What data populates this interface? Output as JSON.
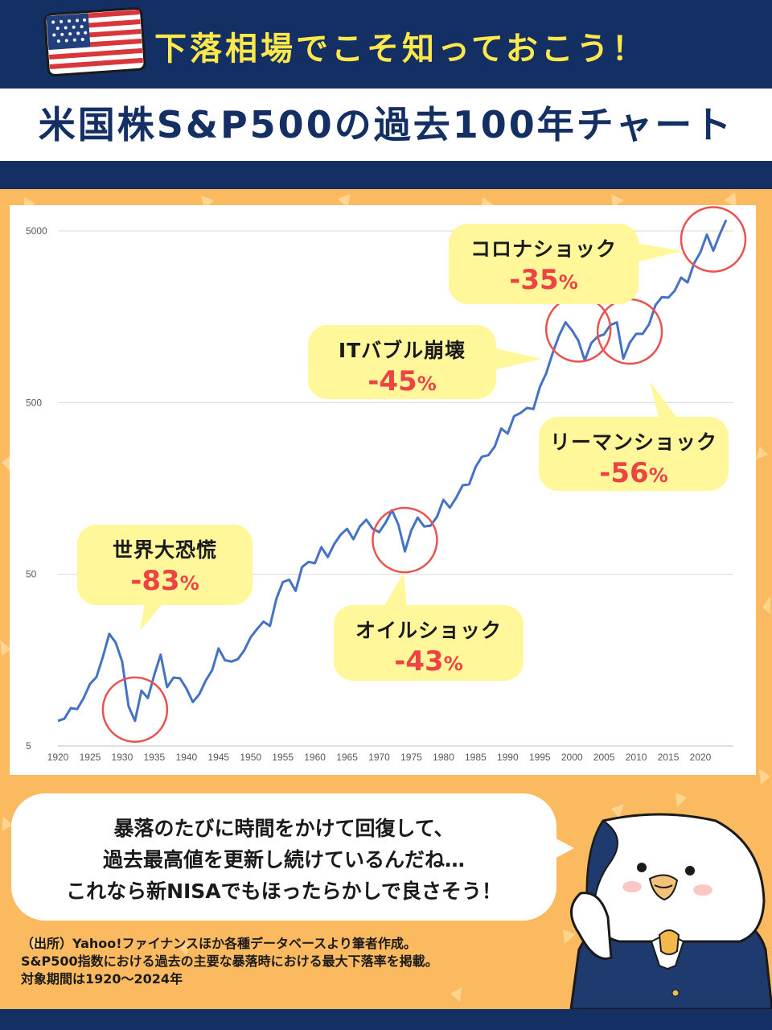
{
  "header": {
    "subtitle": "下落相場でこそ知っておこう！",
    "title": "米国株S&P500の過去100年チャート"
  },
  "colors": {
    "navy": "#132f63",
    "yellow_text": "#ffe94a",
    "orange_bg": "#fbb960",
    "line": "#4472c4",
    "circle": "#e8524f",
    "callout_bg": "#fff79a",
    "percent_red": "#ef4245"
  },
  "chart_data": {
    "type": "line",
    "y_scale": "log",
    "ylim": [
      5,
      6500
    ],
    "y_ticks": [
      "5",
      "50",
      "500",
      "5000"
    ],
    "y_tick_values": [
      5,
      50,
      500,
      5000
    ],
    "xlim": [
      1920,
      2024
    ],
    "x_ticks": [
      "1920",
      "1925",
      "1930",
      "1935",
      "1940",
      "1945",
      "1950",
      "1955",
      "1960",
      "1965",
      "1970",
      "1975",
      "1980",
      "1985",
      "1990",
      "1995",
      "2000",
      "2005",
      "2010",
      "2015",
      "2020"
    ],
    "grid": true,
    "series": [
      {
        "x": [
          1920,
          1921,
          1922,
          1923,
          1924,
          1925,
          1926,
          1927,
          1928,
          1929,
          1930,
          1931,
          1932,
          1933,
          1934,
          1935,
          1936,
          1937,
          1938,
          1939,
          1940,
          1941,
          1942,
          1943,
          1944,
          1945,
          1946,
          1947,
          1948,
          1949,
          1950,
          1951,
          1952,
          1953,
          1954,
          1955,
          1956,
          1957,
          1958,
          1959,
          1960,
          1961,
          1962,
          1963,
          1964,
          1965,
          1966,
          1967,
          1968,
          1969,
          1970,
          1971,
          1972,
          1973,
          1974,
          1975,
          1976,
          1977,
          1978,
          1979,
          1980,
          1981,
          1982,
          1983,
          1984,
          1985,
          1986,
          1987,
          1988,
          1989,
          1990,
          1991,
          1992,
          1993,
          1994,
          1995,
          1996,
          1997,
          1998,
          1999,
          2000,
          2001,
          2002,
          2003,
          2004,
          2005,
          2006,
          2007,
          2008,
          2009,
          2010,
          2011,
          2012,
          2013,
          2014,
          2015,
          2016,
          2017,
          2018,
          2019,
          2020,
          2021,
          2022,
          2023,
          2024
        ],
        "values": [
          7.0,
          7.2,
          8.3,
          8.2,
          9.5,
          11.5,
          12.6,
          16.5,
          22.5,
          20.0,
          15.5,
          8.5,
          7.0,
          10.5,
          9.5,
          13.0,
          17.0,
          11.0,
          12.5,
          12.4,
          10.8,
          9.0,
          10.0,
          12.0,
          13.8,
          18.5,
          15.8,
          15.5,
          16.0,
          18.0,
          21.5,
          24.0,
          26.5,
          25.0,
          36.0,
          45.0,
          46.5,
          40.0,
          55.0,
          59.0,
          58.0,
          72.0,
          63.0,
          75.0,
          85.0,
          92.0,
          80.0,
          95.0,
          104.0,
          92.0,
          88.0,
          100.0,
          118.0,
          97.0,
          68.0,
          90.0,
          107.0,
          95.0,
          96.0,
          108.0,
          136.0,
          122.0,
          140.0,
          165.0,
          167.0,
          211.0,
          242.0,
          247.0,
          278.0,
          353.0,
          330.0,
          417.0,
          435.0,
          466.0,
          459.0,
          616.0,
          740.0,
          970.0,
          1229.0,
          1469.0,
          1320.0,
          1148.0,
          880.0,
          1111.0,
          1212.0,
          1248.0,
          1418.0,
          1468.0,
          903.0,
          1115.0,
          1258.0,
          1258.0,
          1426.0,
          1848.0,
          2059.0,
          2044.0,
          2239.0,
          2674.0,
          2507.0,
          3231.0,
          3756.0,
          4766.0,
          3839.0,
          4770.0,
          5800.0
        ]
      }
    ],
    "annotations": [
      {
        "name": "世界大恐慌",
        "drawdown": "-83",
        "unit": "%",
        "year": 1932
      },
      {
        "name": "オイルショック",
        "drawdown": "-43",
        "unit": "%",
        "year": 1974
      },
      {
        "name": "ITバブル崩壊",
        "drawdown": "-45",
        "unit": "%",
        "year": 2001
      },
      {
        "name": "リーマンショック",
        "drawdown": "-56",
        "unit": "%",
        "year": 2009
      },
      {
        "name": "コロナショック",
        "drawdown": "-35",
        "unit": "%",
        "year": 2022
      }
    ]
  },
  "speech": {
    "line1": "暴落のたびに時間をかけて回復して、",
    "line2": "過去最高値を更新し続けているんだね…",
    "line3": "これなら新NISAでもほったらかしで良さそう！"
  },
  "source": {
    "line1": "（出所）Yahoo!ファイナンスほか各種データベースより筆者作成。",
    "line2": "S&P500指数における過去の主要な暴落時における最大下落率を掲載。",
    "line3": "対象期間は1920〜2024年"
  }
}
